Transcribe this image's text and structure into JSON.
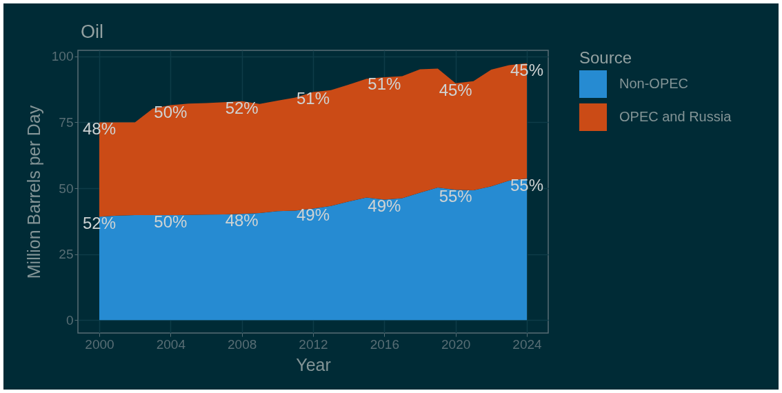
{
  "chart_data": {
    "type": "area",
    "title": "Oil",
    "xlabel": "Year",
    "ylabel": "Million Barrels per Day",
    "legend_title": "Source",
    "stacked": true,
    "x": [
      2000,
      2001,
      2002,
      2003,
      2004,
      2005,
      2006,
      2007,
      2008,
      2009,
      2010,
      2011,
      2012,
      2013,
      2014,
      2015,
      2016,
      2017,
      2018,
      2019,
      2020,
      2021,
      2022,
      2023,
      2024
    ],
    "series": [
      {
        "name": "Non-OPEC",
        "color": "#268bd2",
        "values": [
          39.2,
          39.6,
          39.8,
          39.8,
          39.8,
          39.9,
          40.0,
          40.1,
          40.3,
          40.6,
          41.3,
          41.5,
          42.3,
          43.3,
          45.0,
          46.5,
          45.7,
          46.2,
          48.3,
          50.3,
          49.4,
          49.2,
          50.7,
          52.9,
          53.7
        ]
      },
      {
        "name": "OPEC and Russia",
        "color": "#cb4b16",
        "values": [
          35.8,
          35.4,
          35.2,
          40.4,
          41.7,
          42.2,
          42.3,
          42.5,
          42.7,
          41.4,
          41.9,
          42.9,
          44.2,
          43.9,
          44.3,
          45.0,
          46.4,
          46.3,
          46.8,
          45.1,
          40.4,
          41.4,
          44.3,
          43.8,
          43.7
        ]
      }
    ],
    "xlim": [
      1998.8,
      2025.2
    ],
    "xticks": [
      2000,
      2004,
      2008,
      2012,
      2016,
      2020,
      2024
    ],
    "ylim": [
      -4.9,
      102.3
    ],
    "yticks": [
      0,
      25,
      50,
      75,
      100
    ],
    "grid": true,
    "legend": "right",
    "annotations": [
      {
        "text": "48%",
        "x": 2000,
        "y": 75.0
      },
      {
        "text": "50%",
        "x": 2004,
        "y": 81.5
      },
      {
        "text": "52%",
        "x": 2008,
        "y": 83.0
      },
      {
        "text": "51%",
        "x": 2012,
        "y": 86.5
      },
      {
        "text": "51%",
        "x": 2016,
        "y": 92.1
      },
      {
        "text": "45%",
        "x": 2020,
        "y": 89.8
      },
      {
        "text": "45%",
        "x": 2024,
        "y": 97.4
      },
      {
        "text": "52%",
        "x": 2000,
        "y": 39.2
      },
      {
        "text": "50%",
        "x": 2004,
        "y": 39.8
      },
      {
        "text": "48%",
        "x": 2008,
        "y": 40.3
      },
      {
        "text": "49%",
        "x": 2012,
        "y": 42.3
      },
      {
        "text": "49%",
        "x": 2016,
        "y": 45.7
      },
      {
        "text": "55%",
        "x": 2020,
        "y": 49.4
      },
      {
        "text": "55%",
        "x": 2024,
        "y": 53.7
      }
    ]
  }
}
